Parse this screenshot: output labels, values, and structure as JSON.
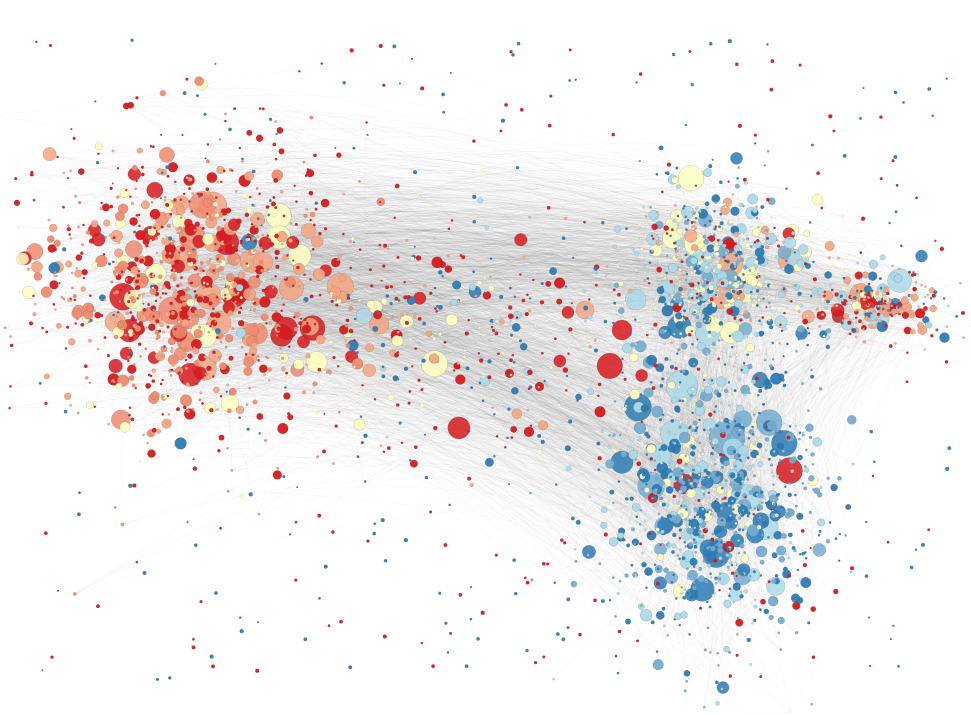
{
  "figure": {
    "type": "network-graph",
    "labels_visible": false,
    "background_color": "#ffffff",
    "edge_color": "#3a3a3a"
  },
  "node_palette": {
    "red": "#d7191c",
    "light_red": "#f08a6e",
    "salmon": "#f4a582",
    "cream": "#ffffbf",
    "pale_blue": "#abd9e9",
    "mid_blue": "#74add1",
    "blue": "#2c7bb6"
  },
  "clusters": [
    {
      "name": "left-cluster",
      "dominant_colors": [
        "red",
        "light_red",
        "salmon",
        "cream"
      ]
    },
    {
      "name": "right-upper-cluster",
      "dominant_colors": [
        "cream",
        "pale_blue",
        "blue",
        "red"
      ]
    },
    {
      "name": "right-lower-cluster",
      "dominant_colors": [
        "blue",
        "mid_blue",
        "pale_blue",
        "cream"
      ]
    },
    {
      "name": "right-tail-cluster",
      "dominant_colors": [
        "salmon",
        "red",
        "blue",
        "pale_blue"
      ]
    }
  ]
}
